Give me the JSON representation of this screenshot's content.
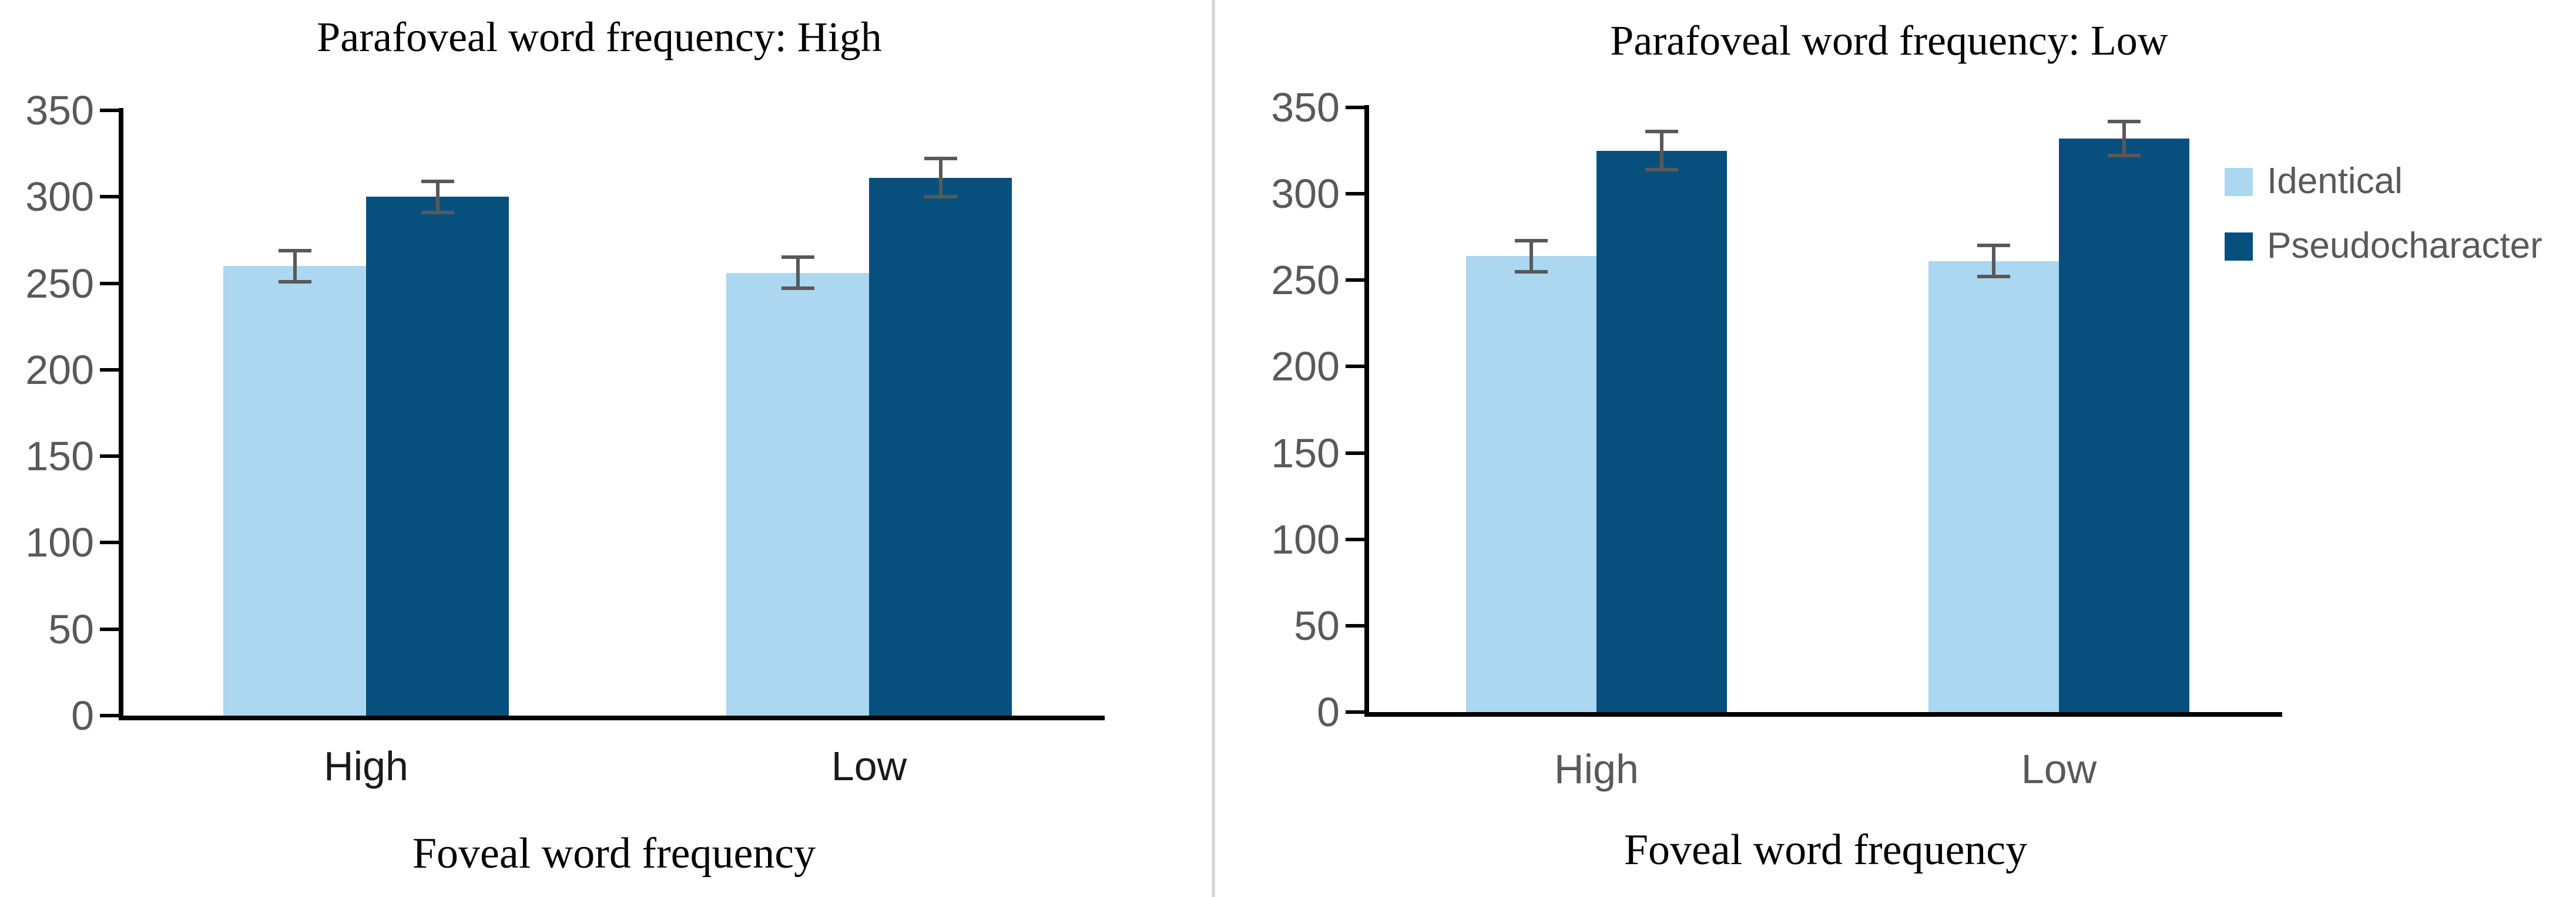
{
  "palette": {
    "light_series": "#ABD7F0",
    "dark_series": "#07507E",
    "axis": "#000000",
    "tick_label": "#595959",
    "error_bar": "#595959",
    "left_category_label": "#1A1A1A",
    "right_category_label": "#595959",
    "divider": "#D9D9D9",
    "title_text": "#000000"
  },
  "divider": {
    "present": true
  },
  "chart_data": [
    {
      "type": "bar",
      "title": "Parafoveal word frequency: High",
      "xlabel": "Foveal word frequency",
      "ylabel": "",
      "categories": [
        "High",
        "Low"
      ],
      "series": [
        {
          "name": "Identical",
          "values": [
            260,
            256
          ],
          "errors": [
            9,
            9
          ]
        },
        {
          "name": "Pseudocharacter",
          "values": [
            300,
            311
          ],
          "errors": [
            9,
            11
          ]
        }
      ],
      "ylim": [
        0,
        350
      ],
      "ytick_step": 50,
      "yticks": [
        0,
        50,
        100,
        150,
        200,
        250,
        300,
        350
      ],
      "grid": false,
      "legend": false
    },
    {
      "type": "bar",
      "title": "Parafoveal word frequency: Low",
      "xlabel": "Foveal word frequency",
      "ylabel": "",
      "categories": [
        "High",
        "Low"
      ],
      "series": [
        {
          "name": "Identical",
          "values": [
            264,
            261
          ],
          "errors": [
            9,
            9
          ]
        },
        {
          "name": "Pseudocharacter",
          "values": [
            325,
            332
          ],
          "errors": [
            11,
            10
          ]
        }
      ],
      "ylim": [
        0,
        350
      ],
      "ytick_step": 50,
      "yticks": [
        0,
        50,
        100,
        150,
        200,
        250,
        300,
        350
      ],
      "grid": false,
      "legend": true,
      "legend_position": "right"
    }
  ]
}
